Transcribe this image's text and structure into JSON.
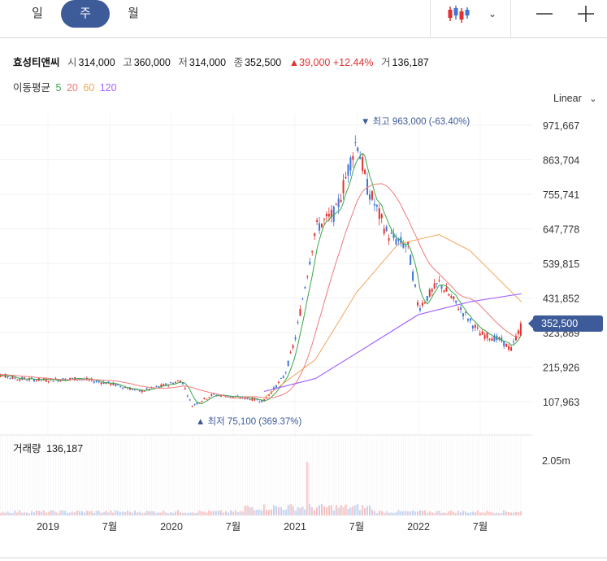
{
  "toolbar": {
    "tabs": [
      "일",
      "주",
      "월"
    ],
    "active_tab": "주",
    "chart_type_icon": "candlestick-icon",
    "dropdown_icon": "chevron-down-icon",
    "zoom_out_icon": "minus-icon",
    "zoom_in_icon": "plus-icon"
  },
  "quote": {
    "name": "효성티앤씨",
    "open_label": "시",
    "open": "314,000",
    "high_label": "고",
    "high": "360,000",
    "low_label": "저",
    "low": "314,000",
    "close_label": "종",
    "close": "352,500",
    "change_arrow": "▲",
    "change": "39,000",
    "change_pct": "+12.44%",
    "volume_label": "거",
    "volume": "136,187"
  },
  "ma_legend": {
    "label": "이동평균",
    "items": [
      {
        "period": "5",
        "color": "#39a84a"
      },
      {
        "period": "20",
        "color": "#f07a7a"
      },
      {
        "period": "60",
        "color": "#f3a55c"
      },
      {
        "period": "120",
        "color": "#a366ff"
      }
    ]
  },
  "scale_mode": "Linear",
  "volume_panel": {
    "title": "거래량",
    "value": "136,187",
    "axis_label": "2.05m"
  },
  "current_price_tag": "352,500",
  "colors": {
    "up": "#e0322f",
    "down": "#3f76d6",
    "accent": "#3d5a99"
  },
  "chart_data": {
    "type": "candlestick",
    "scale": "linear",
    "y_ticks": [
      107963,
      215926,
      323889,
      431852,
      539815,
      647778,
      755741,
      863704,
      971667
    ],
    "y_tick_labels": [
      "107,963",
      "215,926",
      "323,889",
      "431,852",
      "539,815",
      "647,778",
      "755,741",
      "863,704",
      "971,667"
    ],
    "x_tick_labels": [
      "2019",
      "7월",
      "2020",
      "7월",
      "2021",
      "7월",
      "2022",
      "7월"
    ],
    "x_ticks": [
      "2019-01",
      "2019-07",
      "2020-01",
      "2020-07",
      "2021-01",
      "2021-07",
      "2022-01",
      "2022-07"
    ],
    "annotations": [
      {
        "text": "▼ 최고 963,000 (-63.40%)",
        "price": 963000,
        "date": "2021-07",
        "kind": "high"
      },
      {
        "text": "▲ 최저 75,100 (369.37%)",
        "price": 75100,
        "date": "2020-03",
        "kind": "low"
      }
    ],
    "close_price_points": [
      {
        "date": "2018-07",
        "close": 200000
      },
      {
        "date": "2018-10",
        "close": 180000
      },
      {
        "date": "2019-01",
        "close": 175000
      },
      {
        "date": "2019-04",
        "close": 180000
      },
      {
        "date": "2019-07",
        "close": 165000
      },
      {
        "date": "2019-10",
        "close": 140000
      },
      {
        "date": "2020-01",
        "close": 165000
      },
      {
        "date": "2020-02",
        "close": 175000
      },
      {
        "date": "2020-03",
        "close": 95000
      },
      {
        "date": "2020-05",
        "close": 130000
      },
      {
        "date": "2020-08",
        "close": 120000
      },
      {
        "date": "2020-10",
        "close": 110000
      },
      {
        "date": "2020-12",
        "close": 190000
      },
      {
        "date": "2021-01",
        "close": 300000
      },
      {
        "date": "2021-03",
        "close": 650000
      },
      {
        "date": "2021-05",
        "close": 700000
      },
      {
        "date": "2021-07",
        "close": 930000
      },
      {
        "date": "2021-08",
        "close": 780000
      },
      {
        "date": "2021-10",
        "close": 630000
      },
      {
        "date": "2021-12",
        "close": 590000
      },
      {
        "date": "2022-01",
        "close": 400000
      },
      {
        "date": "2022-03",
        "close": 480000
      },
      {
        "date": "2022-05",
        "close": 400000
      },
      {
        "date": "2022-07",
        "close": 320000
      },
      {
        "date": "2022-09",
        "close": 300000
      },
      {
        "date": "2022-10",
        "close": 270000
      },
      {
        "date": "2022-11",
        "close": 352500
      }
    ],
    "ma120_points": [
      {
        "date": "2020-10",
        "value": 140000
      },
      {
        "date": "2021-03",
        "value": 180000
      },
      {
        "date": "2021-07",
        "value": 260000
      },
      {
        "date": "2022-01",
        "value": 380000
      },
      {
        "date": "2022-06",
        "value": 420000
      },
      {
        "date": "2022-11",
        "value": 445000
      }
    ],
    "ma60_points": [
      {
        "date": "2020-10",
        "value": 120000
      },
      {
        "date": "2021-03",
        "value": 240000
      },
      {
        "date": "2021-07",
        "value": 450000
      },
      {
        "date": "2021-11",
        "value": 600000
      },
      {
        "date": "2022-03",
        "value": 630000
      },
      {
        "date": "2022-06",
        "value": 580000
      },
      {
        "date": "2022-11",
        "value": 420000
      }
    ],
    "volume_axis": {
      "tick": 2050000,
      "tick_label": "2.05m"
    }
  }
}
